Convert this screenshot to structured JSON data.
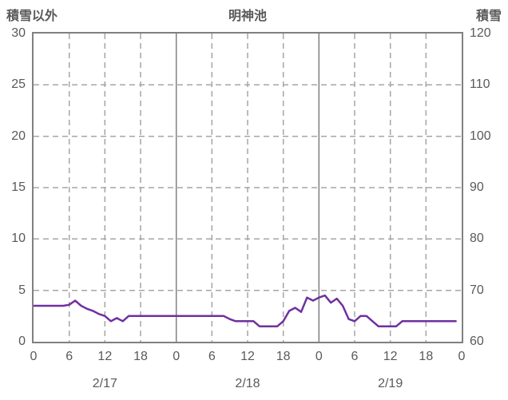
{
  "chart_data": {
    "type": "line",
    "title": "明神池",
    "left_axis": {
      "label": "積雪以外",
      "min": 0,
      "max": 30,
      "ticks": [
        0,
        5,
        10,
        15,
        20,
        25,
        30
      ]
    },
    "right_axis": {
      "label": "積雪",
      "min": 60,
      "max": 120,
      "ticks": [
        60,
        70,
        80,
        90,
        100,
        110,
        120
      ]
    },
    "x_axis": {
      "hours_total": 72,
      "tick_interval_hours": 6,
      "hour_tick_labels": [
        "0",
        "6",
        "12",
        "18",
        "0",
        "6",
        "12",
        "18",
        "0",
        "6",
        "12",
        "18",
        "0"
      ],
      "day_labels": [
        "2/17",
        "2/18",
        "2/19"
      ]
    },
    "grid": true,
    "legend_position": "none",
    "colors": {
      "line": "#7030a0",
      "grid": "#a6a6a6",
      "day_separator": "#808080",
      "border": "#808080",
      "text": "#595959",
      "background": "#ffffff"
    },
    "series": [
      {
        "name": "積雪以外",
        "axis": "left",
        "color": "#7030a0",
        "x_unit": "hour",
        "values": [
          3.5,
          3.5,
          3.5,
          3.5,
          3.5,
          3.5,
          3.6,
          4,
          3.5,
          3.2,
          3,
          2.7,
          2.5,
          2,
          2.3,
          2,
          2.5,
          2.5,
          2.5,
          2.5,
          2.5,
          2.5,
          2.5,
          2.5,
          2.5,
          2.5,
          2.5,
          2.5,
          2.5,
          2.5,
          2.5,
          2.5,
          2.5,
          2.2,
          2,
          2,
          2,
          2,
          1.5,
          1.5,
          1.5,
          1.5,
          2,
          3,
          3.3,
          2.9,
          4.3,
          4,
          4.3,
          4.5,
          3.8,
          4.2,
          3.5,
          2.2,
          2,
          2.5,
          2.5,
          2,
          1.5,
          1.5,
          1.5,
          1.5,
          2,
          2,
          2,
          2,
          2,
          2,
          2,
          2,
          2,
          2
        ]
      }
    ]
  }
}
